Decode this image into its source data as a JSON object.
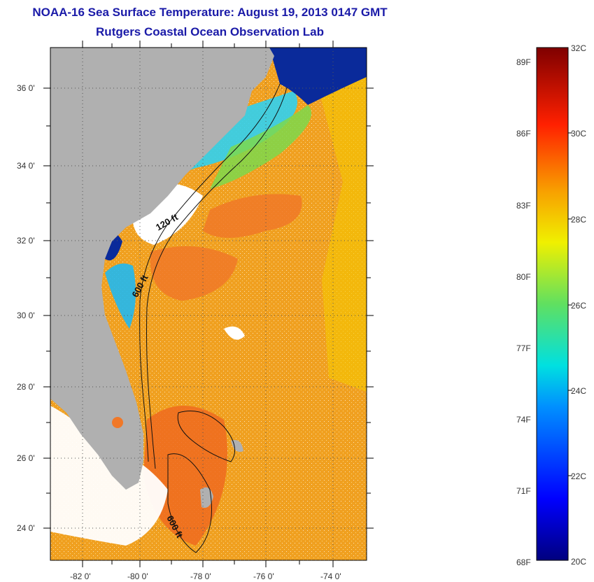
{
  "title": "NOAA-16 Sea Surface Temperature:  August 19, 2013 0147 GMT",
  "subtitle": "Rutgers Coastal Ocean Observation Lab",
  "map": {
    "lat_labels": [
      "36 0'",
      "34 0'",
      "32 0'",
      "30 0'",
      "28 0'",
      "26 0'",
      "24 0'"
    ],
    "lon_labels": [
      "-82 0'",
      "-80 0'",
      "-78 0'",
      "-76 0'",
      "-74 0'"
    ],
    "isobath_labels": [
      "120 ft",
      "600 ft",
      "600 ft"
    ],
    "colors": {
      "land": "#b0b0b0",
      "cloud": "#ffffff",
      "offshore_sst": "#f0a020",
      "gulf_stream": "#f07828",
      "shelf_cool": "#30d0f0",
      "cold_nearshore": "#0a2a9a"
    }
  },
  "colorbar": {
    "celsius_labels": [
      "32C",
      "30C",
      "28C",
      "26C",
      "24C",
      "22C",
      "20C"
    ],
    "fahrenheit_labels": [
      "89F",
      "86F",
      "83F",
      "80F",
      "77F",
      "74F",
      "71F",
      "68F"
    ],
    "min_c": 20,
    "max_c": 32
  }
}
